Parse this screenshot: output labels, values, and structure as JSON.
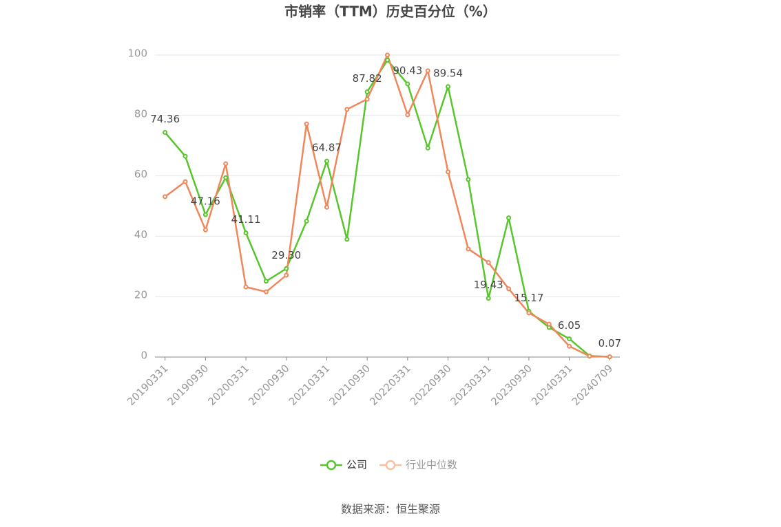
{
  "chart_data": {
    "type": "line",
    "title": "市销率（TTM）历史百分位（%）",
    "categories": [
      "20190331",
      null,
      "20190930",
      null,
      "20200331",
      null,
      "20200930",
      null,
      "20210331",
      null,
      "20210930",
      null,
      "20220331",
      null,
      "20220930",
      null,
      "20230331",
      null,
      "20230930",
      null,
      "20240331",
      null,
      "20240709"
    ],
    "series": [
      {
        "name": "公司",
        "color": "#58c52c",
        "values": [
          74.36,
          66.5,
          47.16,
          59.4,
          41.11,
          25.1,
          29.3,
          45.0,
          64.87,
          39.0,
          87.82,
          98.3,
          90.43,
          69.2,
          89.54,
          58.8,
          19.43,
          46.1,
          15.17,
          9.8,
          6.05,
          0.4,
          0.07
        ],
        "value_labels": [
          "74.36",
          null,
          "47.16",
          null,
          "41.11",
          null,
          "29.30",
          null,
          "64.87",
          null,
          "87.82",
          null,
          "90.43",
          null,
          "89.54",
          null,
          "19.43",
          null,
          "15.17",
          null,
          "6.05",
          null,
          "0.07"
        ]
      },
      {
        "name": "行业中位数",
        "color": "#f0875a",
        "values": [
          53.1,
          58.1,
          42.1,
          64.0,
          23.2,
          21.6,
          27.1,
          77.2,
          49.6,
          82.0,
          85.4,
          100,
          80.2,
          94.8,
          61.3,
          35.8,
          31.3,
          22.6,
          14.6,
          10.9,
          3.6,
          0.3,
          0.1
        ]
      }
    ],
    "ylim": [
      0,
      100
    ],
    "yticks": [
      0,
      20,
      40,
      60,
      80,
      100
    ],
    "grid": true,
    "legend": "bottom",
    "source": "数据来源：恒生聚源"
  }
}
